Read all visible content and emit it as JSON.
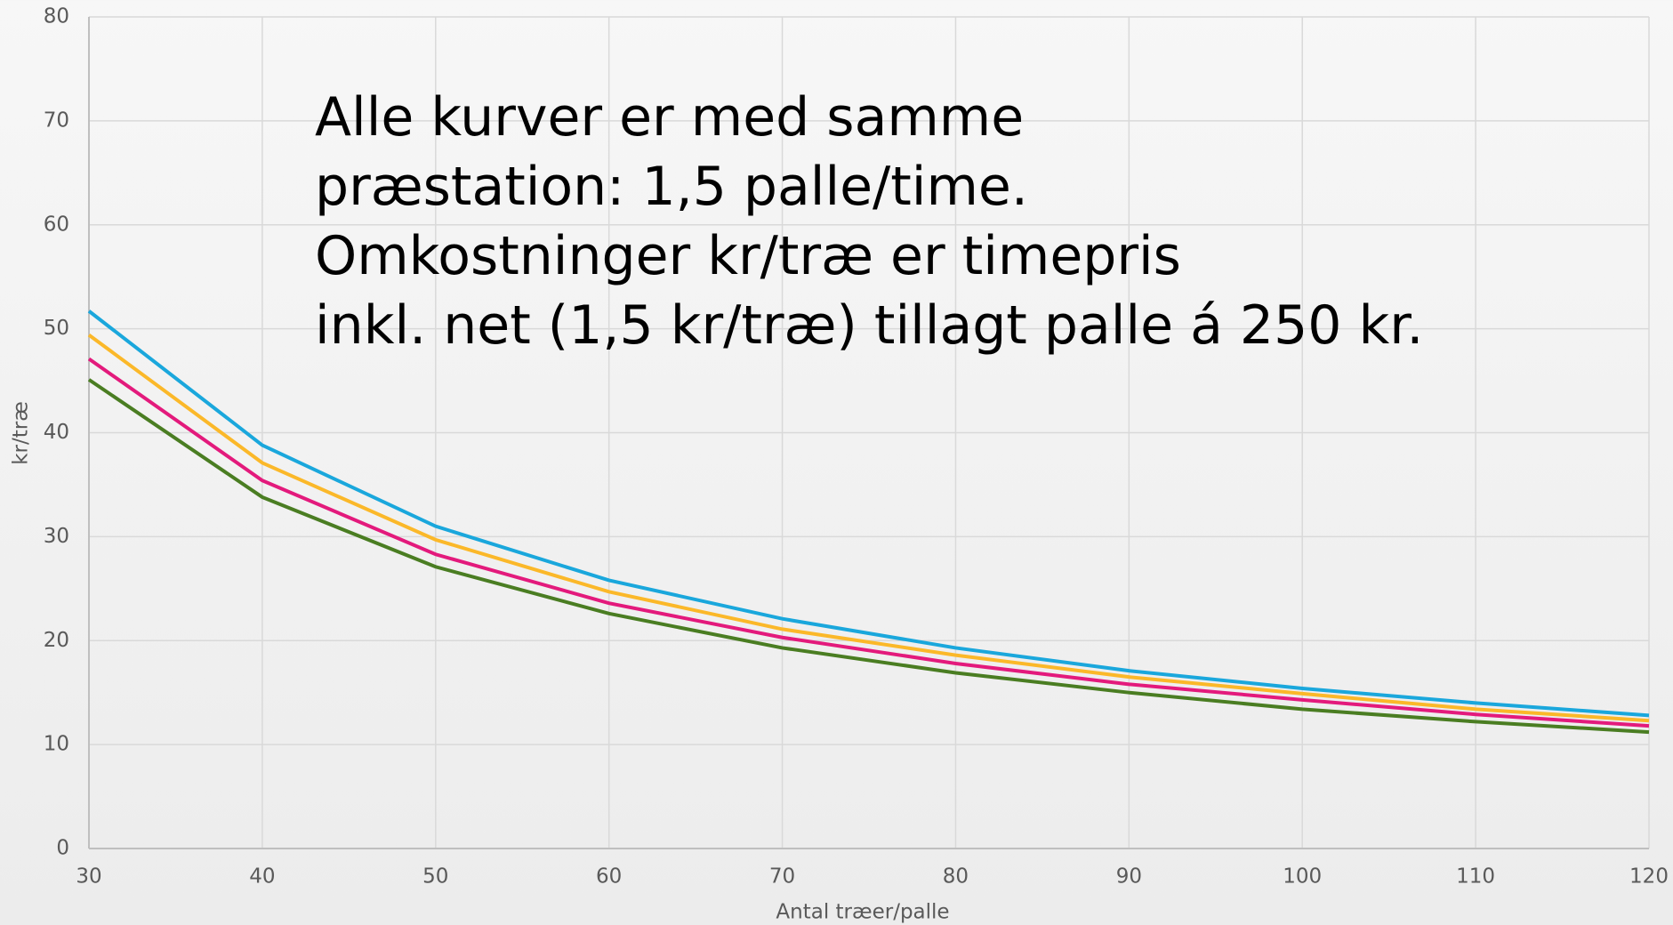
{
  "chart_data": {
    "type": "line",
    "annotation": [
      "Alle kurver er med samme",
      "præstation: 1,5 palle/time.",
      "Omkostninger kr/træ er timepris",
      "inkl. net (1,5 kr/træ) tillagt palle á 250 kr."
    ],
    "xlabel": "Antal træer/palle",
    "ylabel": "kr/træ",
    "x": [
      30,
      40,
      50,
      60,
      70,
      80,
      90,
      100,
      110,
      120
    ],
    "series": [
      {
        "color": "#1aa7dc",
        "values": [
          51.7,
          38.8,
          31.0,
          25.8,
          22.1,
          19.3,
          17.1,
          15.4,
          14.0,
          12.8
        ]
      },
      {
        "color": "#fbb829",
        "values": [
          49.4,
          37.1,
          29.7,
          24.7,
          21.1,
          18.6,
          16.5,
          14.9,
          13.4,
          12.3
        ]
      },
      {
        "color": "#e31a7c",
        "values": [
          47.1,
          35.4,
          28.3,
          23.6,
          20.3,
          17.8,
          15.8,
          14.3,
          12.9,
          11.8
        ]
      },
      {
        "color": "#4a7d22",
        "values": [
          45.1,
          33.8,
          27.1,
          22.6,
          19.3,
          16.9,
          15.0,
          13.4,
          12.2,
          11.2
        ]
      }
    ],
    "xlim": [
      30,
      120
    ],
    "xticks": [
      30,
      40,
      50,
      60,
      70,
      80,
      90,
      100,
      110,
      120
    ],
    "ylim": [
      0,
      80
    ],
    "yticks": [
      0,
      10,
      20,
      30,
      40,
      50,
      60,
      70,
      80
    ],
    "grid": true
  }
}
